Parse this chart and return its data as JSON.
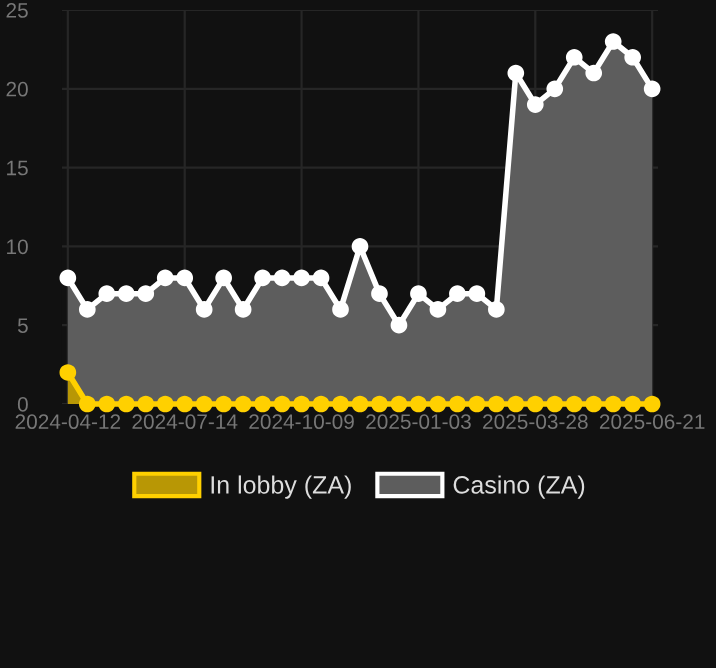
{
  "chart_data": {
    "type": "area",
    "categories": [
      "2024-04-12",
      null,
      null,
      null,
      null,
      null,
      "2024-07-14",
      null,
      null,
      null,
      null,
      null,
      "2024-10-09",
      null,
      null,
      null,
      null,
      null,
      "2025-01-03",
      null,
      null,
      null,
      null,
      null,
      "2025-03-28",
      null,
      null,
      null,
      null,
      null,
      "2025-06-21"
    ],
    "series": [
      {
        "name": "In lobby (ZA)",
        "color": "#ffd000",
        "values": [
          2,
          0,
          0,
          0,
          0,
          0,
          0,
          0,
          0,
          0,
          0,
          0,
          0,
          0,
          0,
          0,
          0,
          0,
          0,
          0,
          0,
          0,
          0,
          0,
          0,
          0,
          0,
          0,
          0,
          0,
          0
        ]
      },
      {
        "name": "Casino (ZA)",
        "color": "#ffffff",
        "values": [
          8,
          6,
          7,
          7,
          7,
          8,
          8,
          6,
          8,
          6,
          8,
          8,
          8,
          8,
          6,
          10,
          7,
          5,
          7,
          6,
          7,
          7,
          6,
          21,
          19,
          20,
          22,
          21,
          23,
          22,
          20
        ]
      }
    ],
    "ylim": [
      0,
      25
    ],
    "yticks": [
      0,
      5,
      10,
      15,
      20,
      25
    ],
    "grid": true,
    "legend": "bottom",
    "marker": "circle"
  }
}
